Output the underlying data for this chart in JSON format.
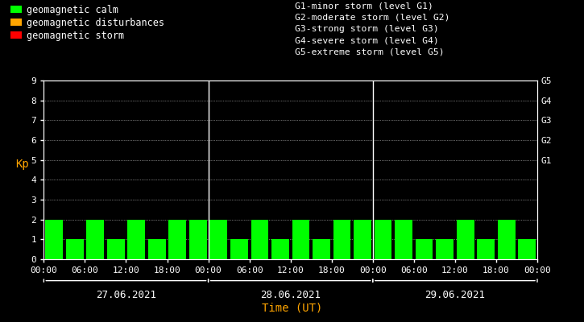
{
  "background_color": "#000000",
  "plot_bg_color": "#000000",
  "bar_color": "#00ff00",
  "text_color": "#ffffff",
  "axis_label_color": "#ffa500",
  "grid_color": "#ffffff",
  "legend_left": [
    {
      "label": "geomagnetic calm",
      "color": "#00ff00"
    },
    {
      "label": "geomagnetic disturbances",
      "color": "#ffa500"
    },
    {
      "label": "geomagnetic storm",
      "color": "#ff0000"
    }
  ],
  "legend_right_lines": [
    "G1-minor storm (level G1)",
    "G2-moderate storm (level G2)",
    "G3-strong storm (level G3)",
    "G4-severe storm (level G4)",
    "G5-extreme storm (level G5)"
  ],
  "kp_values": [
    2,
    1,
    2,
    1,
    2,
    1,
    2,
    2,
    2,
    1,
    2,
    1,
    2,
    1,
    2,
    2,
    2,
    2,
    1,
    1,
    2,
    1,
    2,
    1
  ],
  "dates": [
    "27.06.2021",
    "28.06.2021",
    "29.06.2021"
  ],
  "xlabel": "Time (UT)",
  "ylabel": "Kp",
  "ylim": [
    0,
    9
  ],
  "yticks": [
    0,
    1,
    2,
    3,
    4,
    5,
    6,
    7,
    8,
    9
  ],
  "xtick_labels": [
    "00:00",
    "06:00",
    "12:00",
    "18:00",
    "00:00",
    "06:00",
    "12:00",
    "18:00",
    "00:00",
    "06:00",
    "12:00",
    "18:00",
    "00:00"
  ],
  "font_family": "monospace",
  "font_size": 8,
  "bar_width": 0.85
}
